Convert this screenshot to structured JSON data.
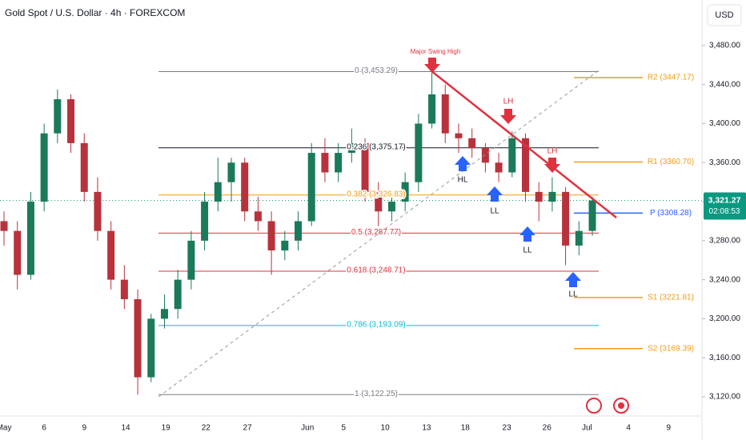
{
  "chart_data": {
    "type": "candlestick",
    "title": "Gold Spot / U.S. Dollar · 4h · FOREXCOM",
    "currency": "USD",
    "up_color": "#1b7a5a",
    "down_color": "#b8323c",
    "xlim": [
      -0.3,
      52.2
    ],
    "ylim": [
      3100.3,
      3526.7
    ],
    "xticks": [
      {
        "value": 0,
        "label": "May"
      },
      {
        "value": 3,
        "label": "6"
      },
      {
        "value": 6,
        "label": "9"
      },
      {
        "value": 9.1,
        "label": "14"
      },
      {
        "value": 12.1,
        "label": "19"
      },
      {
        "value": 15.1,
        "label": "22"
      },
      {
        "value": 18.2,
        "label": "27"
      },
      {
        "value": 22.7,
        "label": "Jun"
      },
      {
        "value": 25.4,
        "label": "5"
      },
      {
        "value": 28.5,
        "label": "10"
      },
      {
        "value": 31.6,
        "label": "13"
      },
      {
        "value": 34.5,
        "label": "18"
      },
      {
        "value": 37.6,
        "label": "23"
      },
      {
        "value": 40.6,
        "label": "26"
      },
      {
        "value": 43.6,
        "label": "Jul"
      },
      {
        "value": 46.7,
        "label": "4"
      },
      {
        "value": 49.7,
        "label": "9"
      }
    ],
    "yticks": [
      {
        "value": 3120,
        "label": "3,120.00"
      },
      {
        "value": 3160,
        "label": "3,160.00"
      },
      {
        "value": 3200,
        "label": "3,200.00"
      },
      {
        "value": 3240,
        "label": "3,240.00"
      },
      {
        "value": 3280,
        "label": "3,280.00"
      },
      {
        "value": 3320,
        "label": "3,320.00"
      },
      {
        "value": 3360,
        "label": "3,360.00"
      },
      {
        "value": 3400,
        "label": "3,400.00"
      },
      {
        "value": 3440,
        "label": "3,440.00"
      },
      {
        "value": 3480,
        "label": "3,480.00"
      }
    ],
    "x": [
      0,
      1,
      2,
      3,
      4,
      5,
      6,
      7,
      8,
      9,
      10,
      11,
      12,
      13,
      14,
      15,
      16,
      17,
      18,
      19,
      20,
      21,
      22,
      23,
      24,
      25,
      26,
      27,
      28,
      29,
      30,
      31,
      32,
      33,
      34,
      35,
      36,
      37,
      38,
      39,
      40,
      41,
      42,
      43,
      44
    ],
    "open": [
      3300,
      3290,
      3245,
      3320,
      3390,
      3425,
      3380,
      3330,
      3290,
      3240,
      3220,
      3140,
      3200,
      3210,
      3240,
      3280,
      3320,
      3340,
      3360,
      3310,
      3300,
      3270,
      3280,
      3300,
      3370,
      3350,
      3370,
      3380,
      3330,
      3310,
      3320,
      3340,
      3400,
      3430,
      3390,
      3385,
      3375,
      3360,
      3350,
      3385,
      3330,
      3320,
      3330,
      3275,
      3290
    ],
    "high": [
      3310,
      3300,
      3330,
      3400,
      3435,
      3430,
      3390,
      3345,
      3300,
      3255,
      3230,
      3205,
      3225,
      3250,
      3290,
      3330,
      3365,
      3365,
      3365,
      3325,
      3310,
      3290,
      3310,
      3380,
      3385,
      3380,
      3395,
      3385,
      3340,
      3330,
      3350,
      3410,
      3452,
      3440,
      3400,
      3395,
      3380,
      3370,
      3392,
      3390,
      3340,
      3345,
      3335,
      3300,
      3325
    ],
    "low": [
      3275,
      3230,
      3240,
      3310,
      3380,
      3370,
      3320,
      3280,
      3230,
      3210,
      3122,
      3135,
      3190,
      3200,
      3230,
      3270,
      3310,
      3320,
      3300,
      3290,
      3245,
      3260,
      3270,
      3295,
      3340,
      3340,
      3360,
      3320,
      3295,
      3300,
      3310,
      3330,
      3395,
      3380,
      3370,
      3365,
      3350,
      3340,
      3345,
      3320,
      3300,
      3310,
      3255,
      3265,
      3285
    ],
    "close": [
      3290,
      3245,
      3320,
      3390,
      3425,
      3380,
      3330,
      3290,
      3240,
      3220,
      3140,
      3200,
      3210,
      3240,
      3280,
      3320,
      3340,
      3360,
      3310,
      3300,
      3270,
      3280,
      3300,
      3370,
      3350,
      3370,
      3380,
      3330,
      3310,
      3320,
      3340,
      3400,
      3430,
      3390,
      3385,
      3375,
      3360,
      3350,
      3385,
      3330,
      3320,
      3330,
      3275,
      3290,
      3321.27
    ],
    "fib_levels": [
      {
        "label": "0 (3,453.29)",
        "value": 3453.29,
        "color": "#787b86"
      },
      {
        "label": "0.236 (3,375.17)",
        "value": 3375.17,
        "color": "#131722"
      },
      {
        "label": "0.382 (3,326.83)",
        "value": 3326.83,
        "color": "#f39c12"
      },
      {
        "label": "0.5 (3,287.77)",
        "value": 3287.77,
        "color": "#e0313f"
      },
      {
        "label": "0.618 (3,248.71)",
        "value": 3248.71,
        "color": "#e0313f"
      },
      {
        "label": "0.786 (3,193.09)",
        "value": 3193.09,
        "color": "#00bcd4"
      },
      {
        "label": "1 (3,122.25)",
        "value": 3122.25,
        "color": "#787b86"
      }
    ],
    "pivots": [
      {
        "label": "R2 (3447.17)",
        "value": 3447.17,
        "color": "#f39c12"
      },
      {
        "label": "R1 (3360.70)",
        "value": 3360.7,
        "color": "#f39c12"
      },
      {
        "label": "P (3308.28)",
        "value": 3308.28,
        "color": "#2962ff"
      },
      {
        "label": "S1 (3221.81)",
        "value": 3221.81,
        "color": "#f39c12"
      },
      {
        "label": "S2 (3169.39)",
        "value": 3169.39,
        "color": "#f39c12"
      }
    ],
    "price_tag": {
      "value": 3321.27,
      "label": "3,321.27",
      "countdown": "02:08:53",
      "color": "#089981"
    },
    "annotations": {
      "swing_high": "Major Swing High",
      "lh1": "LH",
      "lh2": "LH",
      "hl": "HL",
      "ll1": "LL",
      "ll2": "LL",
      "ll3": "LL"
    }
  }
}
